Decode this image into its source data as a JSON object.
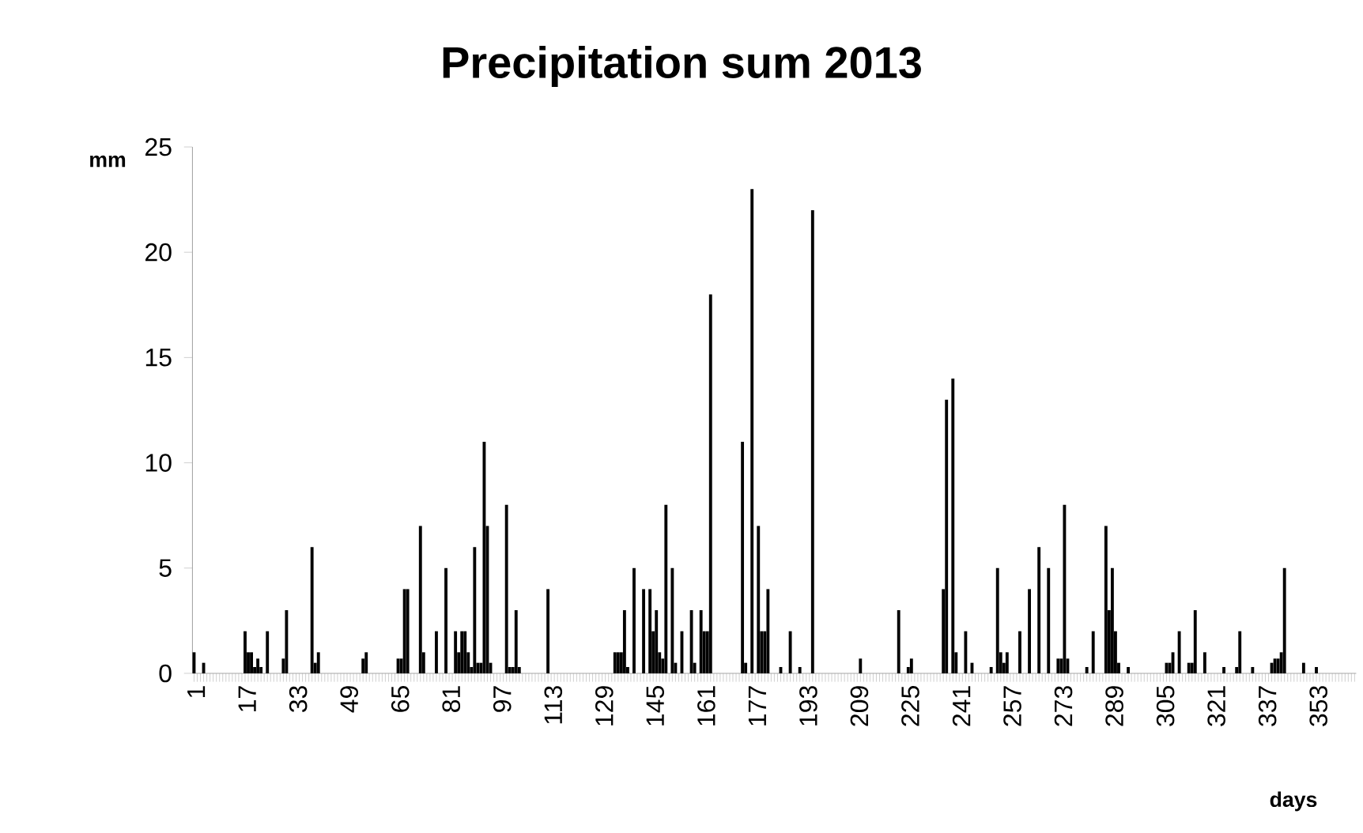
{
  "chart_data": {
    "type": "bar",
    "title": "Precipitation sum 2013",
    "xlabel": "days",
    "ylabel": "mm",
    "color": "#000000",
    "ylim": [
      0,
      25
    ],
    "yticks": [
      0,
      5,
      10,
      15,
      20,
      25
    ],
    "categories": [
      "1",
      null,
      null,
      null,
      null,
      null,
      null,
      null,
      null,
      null,
      null,
      null,
      null,
      null,
      null,
      null,
      "17",
      null,
      null,
      null,
      null,
      null,
      null,
      null,
      null,
      null,
      null,
      null,
      null,
      null,
      null,
      null,
      "33",
      null,
      null,
      null,
      null,
      null,
      null,
      null,
      null,
      null,
      null,
      null,
      null,
      null,
      null,
      null,
      "49",
      null,
      null,
      null,
      null,
      null,
      null,
      null,
      null,
      null,
      null,
      null,
      null,
      null,
      null,
      null,
      "65",
      null,
      null,
      null,
      null,
      null,
      null,
      null,
      null,
      null,
      null,
      null,
      null,
      null,
      null,
      null,
      "81",
      null,
      null,
      null,
      null,
      null,
      null,
      null,
      null,
      null,
      null,
      null,
      null,
      null,
      null,
      null,
      "97",
      null,
      null,
      null,
      null,
      null,
      null,
      null,
      null,
      null,
      null,
      null,
      null,
      null,
      null,
      null,
      "113",
      null,
      null,
      null,
      null,
      null,
      null,
      null,
      null,
      null,
      null,
      null,
      null,
      null,
      null,
      null,
      "129",
      null,
      null,
      null,
      null,
      null,
      null,
      null,
      null,
      null,
      null,
      null,
      null,
      null,
      null,
      null,
      "145",
      null,
      null,
      null,
      null,
      null,
      null,
      null,
      null,
      null,
      null,
      null,
      null,
      null,
      null,
      null,
      "161",
      null,
      null,
      null,
      null,
      null,
      null,
      null,
      null,
      null,
      null,
      null,
      null,
      null,
      null,
      null,
      "177",
      null,
      null,
      null,
      null,
      null,
      null,
      null,
      null,
      null,
      null,
      null,
      null,
      null,
      null,
      null,
      "193",
      null,
      null,
      null,
      null,
      null,
      null,
      null,
      null,
      null,
      null,
      null,
      null,
      null,
      null,
      null,
      "209",
      null,
      null,
      null,
      null,
      null,
      null,
      null,
      null,
      null,
      null,
      null,
      null,
      null,
      null,
      null,
      "225",
      null,
      null,
      null,
      null,
      null,
      null,
      null,
      null,
      null,
      null,
      null,
      null,
      null,
      null,
      null,
      "241",
      null,
      null,
      null,
      null,
      null,
      null,
      null,
      null,
      null,
      null,
      null,
      null,
      null,
      null,
      null,
      "257",
      null,
      null,
      null,
      null,
      null,
      null,
      null,
      null,
      null,
      null,
      null,
      null,
      null,
      null,
      null,
      "273",
      null,
      null,
      null,
      null,
      null,
      null,
      null,
      null,
      null,
      null,
      null,
      null,
      null,
      null,
      null,
      "289",
      null,
      null,
      null,
      null,
      null,
      null,
      null,
      null,
      null,
      null,
      null,
      null,
      null,
      null,
      null,
      "305",
      null,
      null,
      null,
      null,
      null,
      null,
      null,
      null,
      null,
      null,
      null,
      null,
      null,
      null,
      null,
      "321",
      null,
      null,
      null,
      null,
      null,
      null,
      null,
      null,
      null,
      null,
      null,
      null,
      null,
      null,
      null,
      "337",
      null,
      null,
      null,
      null,
      null,
      null,
      null,
      null,
      null,
      null,
      null,
      null,
      null,
      null,
      null,
      "353",
      null,
      null,
      null,
      null,
      null,
      null,
      null,
      null,
      null,
      null,
      null,
      null
    ],
    "values": [
      1,
      0,
      0,
      0.5,
      0,
      0,
      0,
      0,
      0,
      0,
      0,
      0,
      0,
      0,
      0,
      0,
      2,
      1,
      1,
      0.3,
      0.7,
      0.3,
      0,
      2,
      0,
      0,
      0,
      0,
      0.7,
      3,
      0,
      0,
      0,
      0,
      0,
      0,
      0,
      6,
      0.5,
      1,
      0,
      0,
      0,
      0,
      0,
      0,
      0,
      0,
      0,
      0,
      0,
      0,
      0,
      0.7,
      1,
      0,
      0,
      0,
      0,
      0,
      0,
      0,
      0,
      0,
      0.7,
      0.7,
      4,
      4,
      0,
      0,
      0,
      7,
      1,
      0,
      0,
      0,
      2,
      0,
      0,
      5,
      0,
      0,
      2,
      1,
      2,
      2,
      1,
      0.3,
      6,
      0.5,
      0.5,
      11,
      7,
      0.5,
      0,
      0,
      0,
      0,
      8,
      0.3,
      0.3,
      3,
      0.3,
      0,
      0,
      0,
      0,
      0,
      0,
      0,
      0,
      4,
      0,
      0,
      0,
      0,
      0,
      0,
      0,
      0,
      0,
      0,
      0,
      0,
      0,
      0,
      0,
      0,
      0,
      0,
      0,
      0,
      1,
      1,
      1,
      3,
      0.3,
      0,
      5,
      0,
      0,
      4,
      0,
      4,
      2,
      3,
      1,
      0.7,
      8,
      0,
      5,
      0.5,
      0,
      2,
      0,
      0,
      3,
      0.5,
      0,
      3,
      2,
      2,
      18,
      0,
      0,
      0,
      0,
      0,
      0,
      0,
      0,
      0,
      11,
      0.5,
      0,
      23,
      0,
      7,
      2,
      2,
      4,
      0,
      0,
      0,
      0.3,
      0,
      0,
      2,
      0,
      0,
      0.3,
      0,
      0,
      0,
      22,
      0,
      0,
      0,
      0,
      0,
      0,
      0,
      0,
      0,
      0,
      0,
      0,
      0,
      0,
      0.7,
      0,
      0,
      0,
      0,
      0,
      0,
      0,
      0,
      0,
      0,
      0,
      3,
      0,
      0,
      0.3,
      0.7,
      0,
      0,
      0,
      0,
      0,
      0,
      0,
      0,
      0,
      4,
      13,
      0,
      14,
      1,
      0,
      0,
      2,
      0,
      0.5,
      0,
      0,
      0,
      0,
      0,
      0.3,
      0,
      5,
      1,
      0.5,
      1,
      0,
      0,
      0,
      2,
      0,
      0,
      4,
      0,
      0,
      6,
      0,
      0,
      5,
      0,
      0,
      0.7,
      0.7,
      8,
      0.7,
      0,
      0,
      0,
      0,
      0,
      0.3,
      0,
      2,
      0,
      0,
      0,
      7,
      3,
      5,
      2,
      0.5,
      0,
      0,
      0.3,
      0,
      0,
      0,
      0,
      0,
      0,
      0,
      0,
      0,
      0,
      0,
      0.5,
      0.5,
      1,
      0,
      2,
      0,
      0,
      0.5,
      0.5,
      3,
      0,
      0,
      1,
      0,
      0,
      0,
      0,
      0,
      0.3,
      0,
      0,
      0,
      0.3,
      2,
      0,
      0,
      0,
      0.3,
      0,
      0,
      0,
      0,
      0,
      0.5,
      0.7,
      0.7,
      1,
      5,
      0,
      0,
      0,
      0,
      0,
      0.5,
      0,
      0,
      0,
      0.3,
      0,
      0,
      0,
      0,
      0,
      0,
      0,
      0,
      0,
      0,
      0,
      0
    ]
  }
}
